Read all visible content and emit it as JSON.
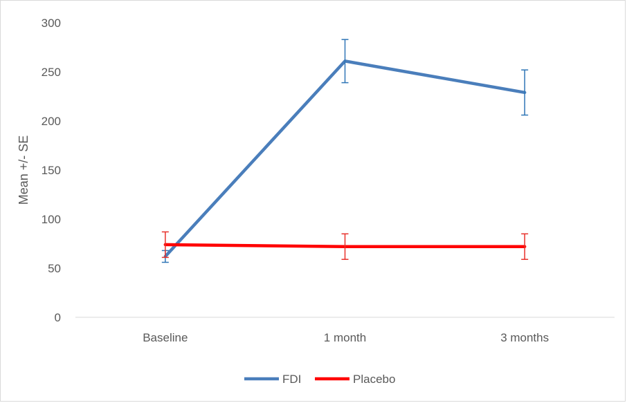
{
  "chart_data": {
    "type": "line",
    "title": "",
    "xlabel": "",
    "ylabel": "Mean +/- SE",
    "categories": [
      "Baseline",
      "1 month",
      "3 months"
    ],
    "ylim": [
      0,
      300
    ],
    "yticks": [
      0,
      50,
      100,
      150,
      200,
      250,
      300
    ],
    "grid": false,
    "legend_position": "bottom",
    "series": [
      {
        "name": "FDI",
        "color": "#4a7ebb",
        "error_bar_color": "#2e75b6",
        "values": [
          62,
          261,
          229
        ],
        "se": [
          6,
          22,
          23
        ]
      },
      {
        "name": "Placebo",
        "color": "#ff0000",
        "error_bar_color": "#e8302a",
        "values": [
          74,
          72,
          72
        ],
        "se": [
          13,
          13,
          13
        ]
      }
    ]
  }
}
